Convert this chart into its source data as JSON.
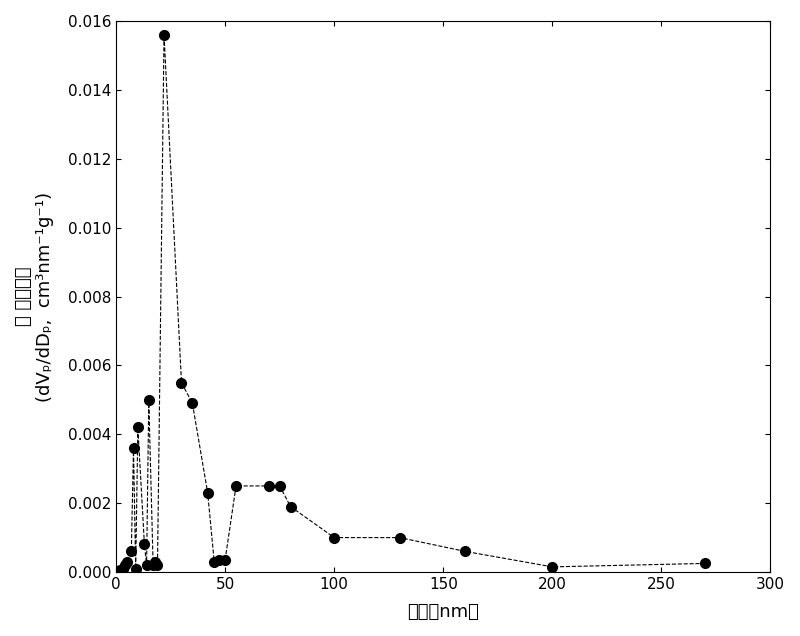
{
  "x": [
    2,
    3,
    4,
    5,
    7,
    8,
    9,
    10,
    13,
    14,
    15,
    17,
    18,
    19,
    22,
    30,
    35,
    42,
    45,
    47,
    50,
    55,
    70,
    75,
    80,
    100,
    130,
    160,
    200,
    270
  ],
  "y": [
    5e-05,
    0.0001,
    0.0002,
    0.0003,
    0.0006,
    0.0036,
    0.0001,
    0.0042,
    0.0008,
    0.0002,
    0.005,
    0.0002,
    0.0003,
    0.0002,
    0.0156,
    0.0055,
    0.0049,
    0.0023,
    0.0003,
    0.00035,
    0.00035,
    0.0025,
    0.0025,
    0.0025,
    0.0019,
    0.001,
    0.001,
    0.0006,
    0.00015,
    0.00025
  ],
  "line_color": "#000000",
  "marker_color": "#000000",
  "marker_size": 7,
  "line_style": "--",
  "line_width": 0.8,
  "xlabel_cn": "孔径",
  "xlabel_unit": "nm",
  "ylabel_line1": "孔 体积微分",
  "ylabel_line2": "(dVₚ/dDₚ,  cm³nm⁻¹g⁻¹)",
  "xlim": [
    0,
    300
  ],
  "ylim": [
    0,
    0.016
  ],
  "xticks": [
    0,
    50,
    100,
    150,
    200,
    250,
    300
  ],
  "yticks": [
    0.0,
    0.002,
    0.004,
    0.006,
    0.008,
    0.01,
    0.012,
    0.014,
    0.016
  ],
  "background_color": "#ffffff",
  "tick_fontsize": 11,
  "label_fontsize": 13
}
